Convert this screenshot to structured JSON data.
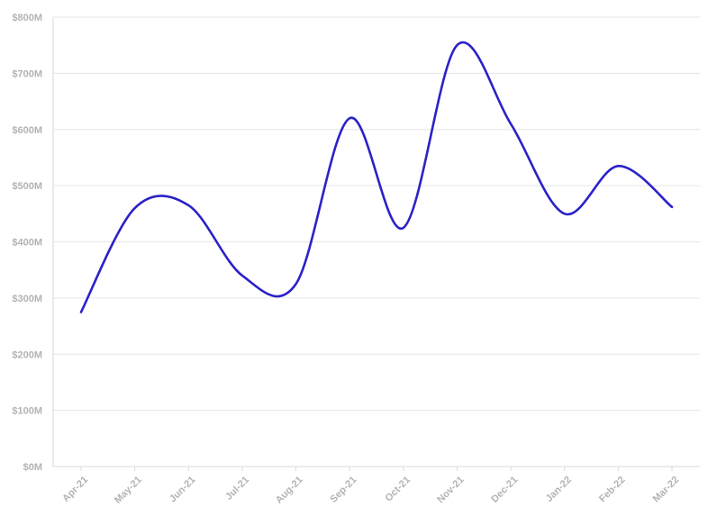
{
  "chart_data": {
    "type": "line",
    "title": "",
    "xlabel": "",
    "ylabel": "",
    "categories": [
      "Apr-21",
      "May-21",
      "Jun-21",
      "Jul-21",
      "Aug-21",
      "Sep-21",
      "Oct-21",
      "Nov-21",
      "Dec-21",
      "Jan-22",
      "Feb-22",
      "Mar-22"
    ],
    "series": [
      {
        "values": [
          275,
          460,
          465,
          340,
          325,
          620,
          425,
          750,
          610,
          450,
          535,
          462
        ]
      }
    ],
    "ylim": [
      0,
      800
    ],
    "yticks": [
      0,
      100,
      200,
      300,
      400,
      500,
      600,
      700,
      800
    ],
    "ytick_labels": [
      "$0M",
      "$100M",
      "$200M",
      "$300M",
      "$400M",
      "$500M",
      "$600M",
      "$700M",
      "$800M"
    ],
    "grid": true,
    "legend": "none",
    "smooth": true,
    "colors": {
      "line": "#2a22c8",
      "grid": "#e6e6e6",
      "axis": "#d9d9d9",
      "tick_text": "#b3b3b3"
    }
  }
}
